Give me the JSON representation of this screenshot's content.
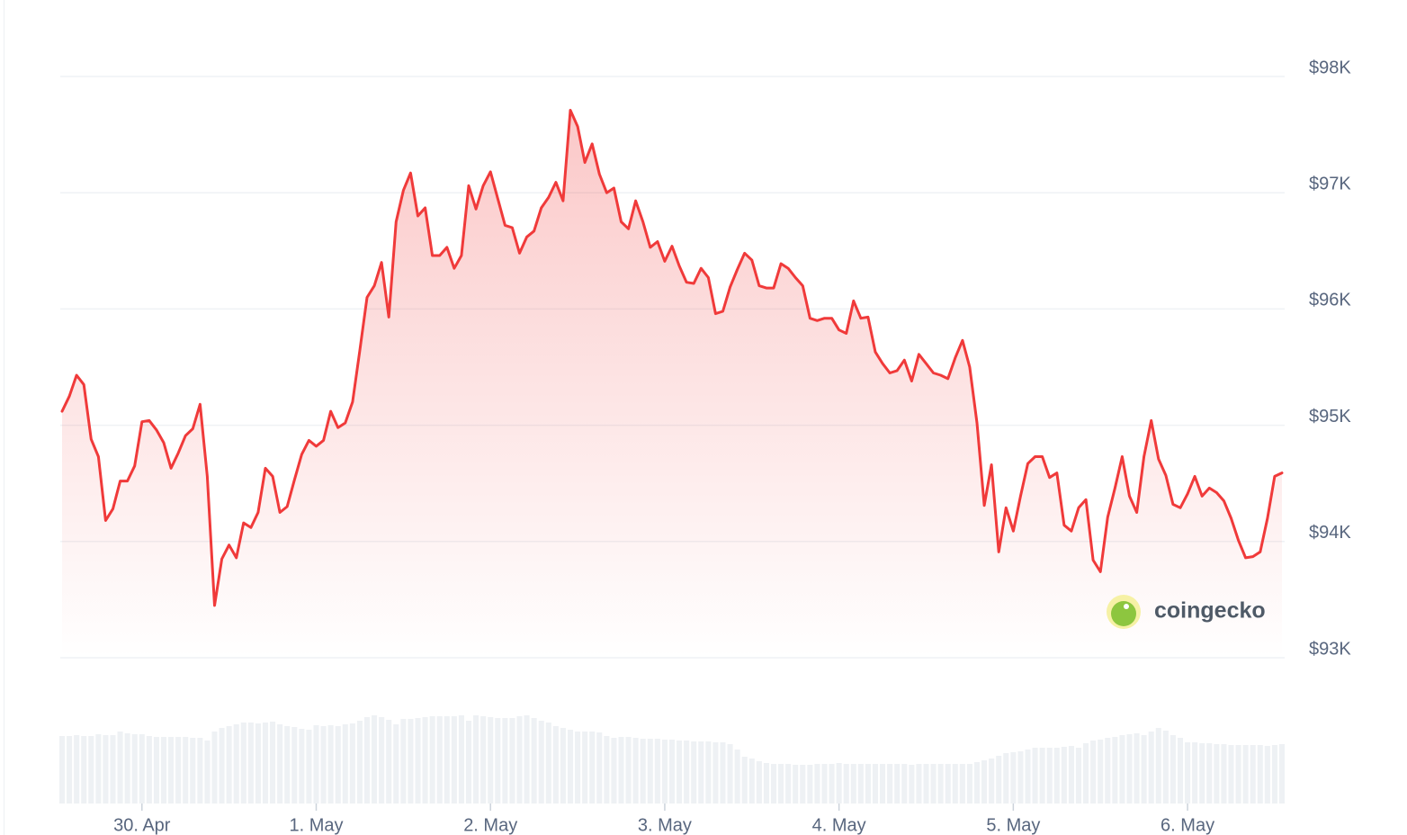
{
  "chart_data": {
    "type": "line",
    "watermark": "coingecko",
    "color": "#f03a3a",
    "volume_color": "#eef1f4",
    "grid": true,
    "xlim": [
      0,
      168
    ],
    "xticks": [
      {
        "value": 11,
        "label": "30. Apr"
      },
      {
        "value": 35,
        "label": "1. May"
      },
      {
        "value": 59,
        "label": "2. May"
      },
      {
        "value": 83,
        "label": "3. May"
      },
      {
        "value": 107,
        "label": "4. May"
      },
      {
        "value": 131,
        "label": "5. May"
      },
      {
        "value": 155,
        "label": "6. May"
      }
    ],
    "ylim": [
      93000,
      98000
    ],
    "yticks": [
      {
        "value": 93000,
        "label": "$93K"
      },
      {
        "value": 94000,
        "label": "$94K"
      },
      {
        "value": 95000,
        "label": "$95K"
      },
      {
        "value": 96000,
        "label": "$96K"
      },
      {
        "value": 97000,
        "label": "$97K"
      },
      {
        "value": 98000,
        "label": "$98K"
      }
    ],
    "values": [
      95120,
      95250,
      95430,
      95350,
      94880,
      94730,
      94180,
      94280,
      94520,
      94520,
      94650,
      95030,
      95040,
      94960,
      94850,
      94630,
      94760,
      94910,
      94970,
      95180,
      94560,
      93450,
      93850,
      93970,
      93860,
      94160,
      94120,
      94250,
      94630,
      94560,
      94250,
      94300,
      94530,
      94750,
      94870,
      94820,
      94870,
      95120,
      94980,
      95020,
      95200,
      95640,
      96100,
      96200,
      96400,
      95930,
      96750,
      97020,
      97170,
      96800,
      96870,
      96460,
      96460,
      96530,
      96350,
      96460,
      97060,
      96860,
      97060,
      97180,
      96950,
      96720,
      96700,
      96480,
      96620,
      96670,
      96870,
      96960,
      97090,
      96930,
      97710,
      97570,
      97260,
      97420,
      97160,
      97000,
      97040,
      96750,
      96690,
      96930,
      96750,
      96530,
      96580,
      96410,
      96540,
      96370,
      96230,
      96220,
      96350,
      96270,
      95960,
      95980,
      96190,
      96340,
      96480,
      96420,
      96200,
      96180,
      96180,
      96390,
      96350,
      96270,
      96200,
      95920,
      95900,
      95920,
      95920,
      95820,
      95790,
      96070,
      95920,
      95930,
      95630,
      95530,
      95450,
      95470,
      95560,
      95380,
      95610,
      95530,
      95450,
      95430,
      95400,
      95580,
      95730,
      95500,
      95020,
      94310,
      94660,
      93910,
      94290,
      94090,
      94390,
      94670,
      94730,
      94730,
      94550,
      94590,
      94140,
      94090,
      94290,
      94360,
      93840,
      93740,
      94210,
      94460,
      94730,
      94390,
      94250,
      94730,
      95040,
      94710,
      94570,
      94320,
      94290,
      94410,
      94560,
      94390,
      94460,
      94420,
      94350,
      94200,
      94010,
      93860,
      93870,
      93910,
      94200,
      94560,
      94590
    ],
    "volumes": [
      75,
      75,
      76,
      75,
      75,
      77,
      76,
      76,
      80,
      78,
      77,
      77,
      75,
      74,
      74,
      74,
      74,
      74,
      73,
      73,
      70,
      80,
      84,
      86,
      88,
      90,
      90,
      89,
      90,
      91,
      88,
      86,
      85,
      83,
      82,
      87,
      86,
      87,
      86,
      88,
      89,
      92,
      96,
      98,
      96,
      93,
      88,
      94,
      94,
      95,
      96,
      97,
      97,
      97,
      97,
      98,
      92,
      98,
      97,
      96,
      95,
      95,
      95,
      97,
      98,
      95,
      92,
      90,
      86,
      84,
      82,
      80,
      80,
      80,
      79,
      75,
      73,
      74,
      74,
      73,
      72,
      72,
      72,
      71,
      71,
      70,
      70,
      69,
      69,
      69,
      68,
      68,
      66,
      60,
      52,
      50,
      47,
      45,
      44,
      44,
      44,
      43,
      43,
      43,
      44,
      44,
      44,
      45,
      44,
      44,
      44,
      44,
      44,
      44,
      44,
      44,
      44,
      43,
      44,
      44,
      44,
      44,
      44,
      44,
      44,
      44,
      46,
      48,
      50,
      53,
      56,
      57,
      58,
      60,
      62,
      62,
      62,
      62,
      63,
      64,
      62,
      67,
      70,
      71,
      73,
      74,
      76,
      77,
      78,
      76,
      80,
      84,
      81,
      76,
      73,
      68,
      68,
      67,
      67,
      66,
      66,
      65,
      65,
      65,
      65,
      65,
      64,
      65,
      66
    ]
  }
}
